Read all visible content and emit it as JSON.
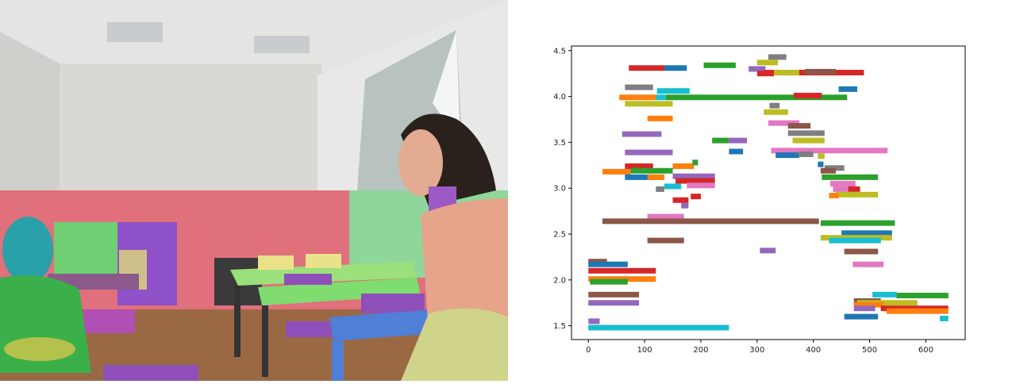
{
  "photo": {
    "description_icon": "segmented-classroom-photo",
    "colors": {
      "ceiling": "#e6e6e6",
      "wall": "#d9d9d6",
      "wall_overlay": "#e0707c",
      "floor": "#9b6a44",
      "person1": "#2aa0a8",
      "person1_body": "#38b04a",
      "person2_hair": "#2b211c",
      "person2_skin": "#e3ac92",
      "person2_shirt": "#e6a48a",
      "person2_skirt": "#cfd48a",
      "desk_top_green": "#9be07a",
      "desk_top_blue": "#4f7fd6",
      "chair_purple": "#8e4fb8",
      "shelf_green": "#6ccf6c",
      "shelf_purple": "#8f52c8"
    }
  },
  "chart_data": {
    "type": "gantt-like horizontal segments",
    "xlim": [
      -30,
      670
    ],
    "ylim": [
      1.35,
      4.55
    ],
    "xticks": [
      0,
      100,
      200,
      300,
      400,
      500,
      600
    ],
    "yticks": [
      1.5,
      2.0,
      2.5,
      3.0,
      3.5,
      4.0,
      4.5
    ],
    "yticklabels": [
      "1.5",
      "2.0",
      "2.5",
      "3.0",
      "3.5",
      "4.0",
      "4.5"
    ],
    "grid": false,
    "segments": [
      {
        "x0": 320,
        "x1": 352,
        "y": 4.43,
        "color": "#7f7f7f"
      },
      {
        "x0": 205,
        "x1": 262,
        "y": 4.34,
        "color": "#2ca02c"
      },
      {
        "x0": 285,
        "x1": 315,
        "y": 4.3,
        "color": "#9467bd"
      },
      {
        "x0": 300,
        "x1": 337,
        "y": 4.37,
        "color": "#bcbd22"
      },
      {
        "x0": 72,
        "x1": 135,
        "y": 4.31,
        "color": "#d62728"
      },
      {
        "x0": 135,
        "x1": 175,
        "y": 4.31,
        "color": "#1f77b4"
      },
      {
        "x0": 313,
        "x1": 490,
        "y": 4.26,
        "color": "#d62728"
      },
      {
        "x0": 300,
        "x1": 330,
        "y": 4.25,
        "color": "#d62728"
      },
      {
        "x0": 330,
        "x1": 375,
        "y": 4.26,
        "color": "#bcbd22"
      },
      {
        "x0": 385,
        "x1": 440,
        "y": 4.27,
        "color": "#8c564b"
      },
      {
        "x0": 65,
        "x1": 115,
        "y": 4.1,
        "color": "#7f7f7f"
      },
      {
        "x0": 122,
        "x1": 180,
        "y": 4.06,
        "color": "#17becf"
      },
      {
        "x0": 55,
        "x1": 120,
        "y": 3.99,
        "color": "#ff7f0e"
      },
      {
        "x0": 120,
        "x1": 138,
        "y": 3.99,
        "color": "#17becf"
      },
      {
        "x0": 138,
        "x1": 460,
        "y": 3.99,
        "color": "#2ca02c"
      },
      {
        "x0": 365,
        "x1": 415,
        "y": 4.01,
        "color": "#d62728"
      },
      {
        "x0": 445,
        "x1": 478,
        "y": 4.08,
        "color": "#1f77b4"
      },
      {
        "x0": 65,
        "x1": 150,
        "y": 3.92,
        "color": "#bcbd22"
      },
      {
        "x0": 322,
        "x1": 340,
        "y": 3.9,
        "color": "#7f7f7f"
      },
      {
        "x0": 312,
        "x1": 355,
        "y": 3.83,
        "color": "#bcbd22"
      },
      {
        "x0": 105,
        "x1": 150,
        "y": 3.76,
        "color": "#ff7f0e"
      },
      {
        "x0": 320,
        "x1": 375,
        "y": 3.71,
        "color": "#e377c2"
      },
      {
        "x0": 355,
        "x1": 395,
        "y": 3.68,
        "color": "#8c564b"
      },
      {
        "x0": 60,
        "x1": 130,
        "y": 3.59,
        "color": "#9467bd"
      },
      {
        "x0": 355,
        "x1": 420,
        "y": 3.6,
        "color": "#7f7f7f"
      },
      {
        "x0": 363,
        "x1": 420,
        "y": 3.52,
        "color": "#bcbd22"
      },
      {
        "x0": 220,
        "x1": 250,
        "y": 3.52,
        "color": "#2ca02c"
      },
      {
        "x0": 250,
        "x1": 282,
        "y": 3.52,
        "color": "#9467bd"
      },
      {
        "x0": 325,
        "x1": 532,
        "y": 3.41,
        "color": "#e377c2"
      },
      {
        "x0": 65,
        "x1": 150,
        "y": 3.39,
        "color": "#9467bd"
      },
      {
        "x0": 250,
        "x1": 275,
        "y": 3.4,
        "color": "#1f77b4"
      },
      {
        "x0": 333,
        "x1": 375,
        "y": 3.36,
        "color": "#1f77b4"
      },
      {
        "x0": 373,
        "x1": 400,
        "y": 3.37,
        "color": "#7f7f7f"
      },
      {
        "x0": 408,
        "x1": 420,
        "y": 3.35,
        "color": "#bcbd22"
      },
      {
        "x0": 408,
        "x1": 418,
        "y": 3.26,
        "color": "#1f77b4"
      },
      {
        "x0": 420,
        "x1": 455,
        "y": 3.22,
        "color": "#7f7f7f"
      },
      {
        "x0": 413,
        "x1": 440,
        "y": 3.19,
        "color": "#8c564b"
      },
      {
        "x0": 150,
        "x1": 188,
        "y": 3.24,
        "color": "#ff7f0e"
      },
      {
        "x0": 185,
        "x1": 195,
        "y": 3.28,
        "color": "#2ca02c"
      },
      {
        "x0": 65,
        "x1": 115,
        "y": 3.24,
        "color": "#d62728"
      },
      {
        "x0": 25,
        "x1": 75,
        "y": 3.18,
        "color": "#ff7f0e"
      },
      {
        "x0": 75,
        "x1": 150,
        "y": 3.19,
        "color": "#2ca02c"
      },
      {
        "x0": 65,
        "x1": 125,
        "y": 3.12,
        "color": "#1f77b4"
      },
      {
        "x0": 105,
        "x1": 135,
        "y": 3.12,
        "color": "#ff7f0e"
      },
      {
        "x0": 150,
        "x1": 225,
        "y": 3.13,
        "color": "#9467bd"
      },
      {
        "x0": 155,
        "x1": 225,
        "y": 3.08,
        "color": "#d62728"
      },
      {
        "x0": 175,
        "x1": 225,
        "y": 3.03,
        "color": "#e377c2"
      },
      {
        "x0": 135,
        "x1": 165,
        "y": 3.02,
        "color": "#17becf"
      },
      {
        "x0": 120,
        "x1": 135,
        "y": 2.99,
        "color": "#7f7f7f"
      },
      {
        "x0": 415,
        "x1": 515,
        "y": 3.12,
        "color": "#2ca02c"
      },
      {
        "x0": 430,
        "x1": 475,
        "y": 3.05,
        "color": "#e377c2"
      },
      {
        "x0": 460,
        "x1": 483,
        "y": 2.99,
        "color": "#d62728"
      },
      {
        "x0": 435,
        "x1": 462,
        "y": 2.99,
        "color": "#e377c2"
      },
      {
        "x0": 440,
        "x1": 515,
        "y": 2.93,
        "color": "#bcbd22"
      },
      {
        "x0": 428,
        "x1": 445,
        "y": 2.92,
        "color": "#ff7f0e"
      },
      {
        "x0": 182,
        "x1": 200,
        "y": 2.91,
        "color": "#d62728"
      },
      {
        "x0": 150,
        "x1": 178,
        "y": 2.87,
        "color": "#d62728"
      },
      {
        "x0": 165,
        "x1": 178,
        "y": 2.81,
        "color": "#9467bd"
      },
      {
        "x0": 105,
        "x1": 170,
        "y": 2.69,
        "color": "#e377c2"
      },
      {
        "x0": 25,
        "x1": 410,
        "y": 2.64,
        "color": "#8c564b"
      },
      {
        "x0": 413,
        "x1": 545,
        "y": 2.62,
        "color": "#2ca02c"
      },
      {
        "x0": 450,
        "x1": 540,
        "y": 2.51,
        "color": "#1f77b4"
      },
      {
        "x0": 413,
        "x1": 540,
        "y": 2.46,
        "color": "#bcbd22"
      },
      {
        "x0": 428,
        "x1": 520,
        "y": 2.43,
        "color": "#17becf"
      },
      {
        "x0": 105,
        "x1": 170,
        "y": 2.43,
        "color": "#8c564b"
      },
      {
        "x0": 305,
        "x1": 333,
        "y": 2.32,
        "color": "#9467bd"
      },
      {
        "x0": 455,
        "x1": 515,
        "y": 2.31,
        "color": "#8c564b"
      },
      {
        "x0": 0,
        "x1": 33,
        "y": 2.2,
        "color": "#8c564b"
      },
      {
        "x0": 0,
        "x1": 70,
        "y": 2.17,
        "color": "#1f77b4"
      },
      {
        "x0": 470,
        "x1": 525,
        "y": 2.17,
        "color": "#e377c2"
      },
      {
        "x0": 0,
        "x1": 120,
        "y": 2.1,
        "color": "#d62728"
      },
      {
        "x0": 0,
        "x1": 120,
        "y": 2.01,
        "color": "#ff7f0e"
      },
      {
        "x0": 3,
        "x1": 70,
        "y": 1.98,
        "color": "#2ca02c"
      },
      {
        "x0": 0,
        "x1": 90,
        "y": 1.84,
        "color": "#8c564b"
      },
      {
        "x0": 0,
        "x1": 90,
        "y": 1.75,
        "color": "#9467bd"
      },
      {
        "x0": 505,
        "x1": 548,
        "y": 1.84,
        "color": "#17becf"
      },
      {
        "x0": 548,
        "x1": 640,
        "y": 1.83,
        "color": "#2ca02c"
      },
      {
        "x0": 472,
        "x1": 520,
        "y": 1.77,
        "color": "#8c564b"
      },
      {
        "x0": 478,
        "x1": 585,
        "y": 1.75,
        "color": "#bcbd22"
      },
      {
        "x0": 472,
        "x1": 525,
        "y": 1.73,
        "color": "#ff7f0e"
      },
      {
        "x0": 520,
        "x1": 640,
        "y": 1.69,
        "color": "#d62728"
      },
      {
        "x0": 472,
        "x1": 510,
        "y": 1.69,
        "color": "#9467bd"
      },
      {
        "x0": 530,
        "x1": 640,
        "y": 1.66,
        "color": "#ff7f0e"
      },
      {
        "x0": 455,
        "x1": 515,
        "y": 1.6,
        "color": "#1f77b4"
      },
      {
        "x0": 625,
        "x1": 640,
        "y": 1.58,
        "color": "#17becf"
      },
      {
        "x0": 0,
        "x1": 20,
        "y": 1.55,
        "color": "#9467bd"
      },
      {
        "x0": 0,
        "x1": 250,
        "y": 1.48,
        "color": "#17becf"
      }
    ]
  }
}
